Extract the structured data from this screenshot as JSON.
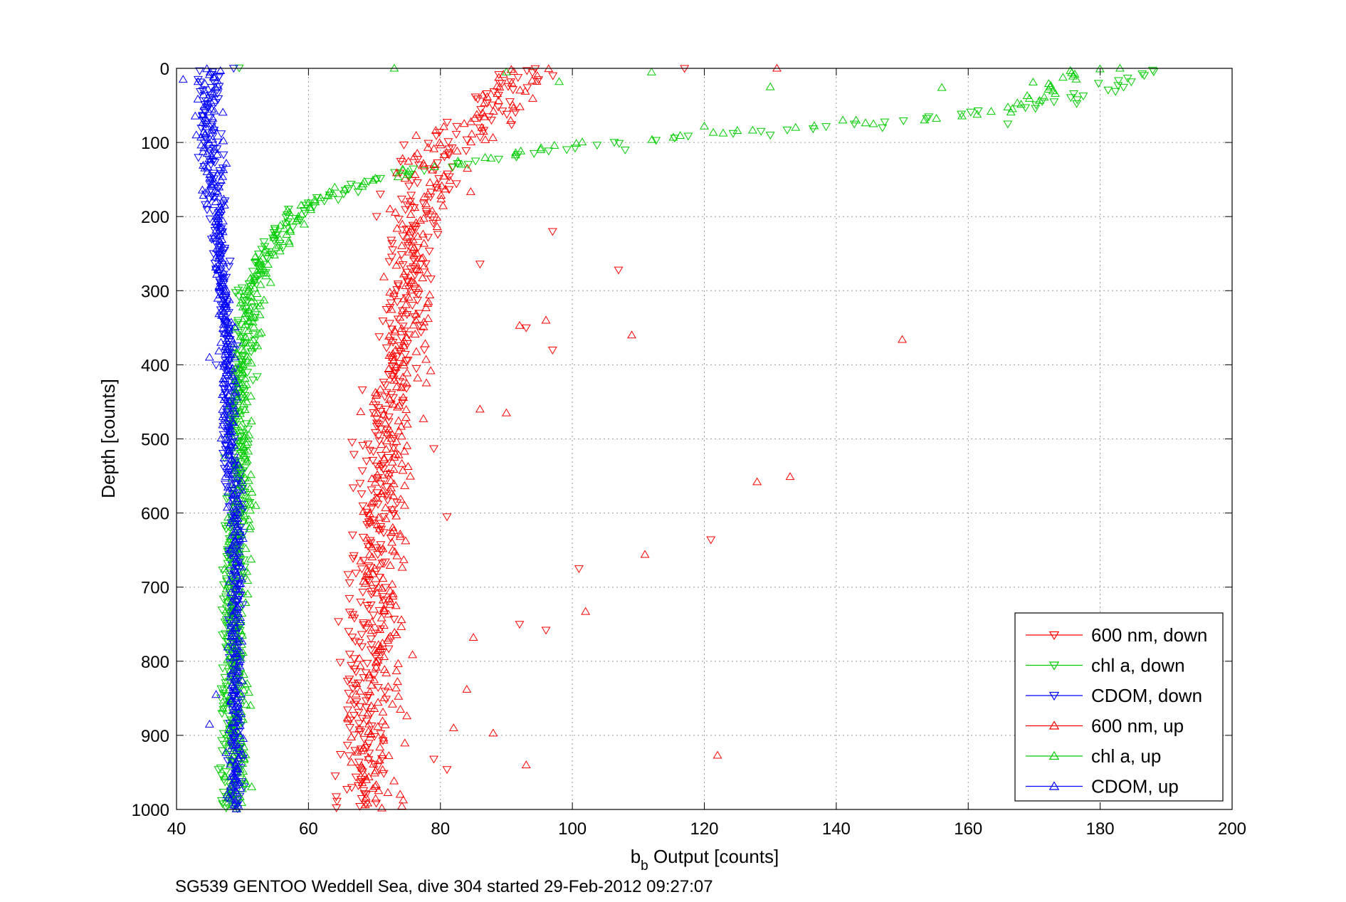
{
  "caption": "SG539 GENTOO Weddell Sea, dive 304 started 29-Feb-2012 09:27:07",
  "chart_data": {
    "type": "scatter",
    "title": "",
    "xlabel_main": "b",
    "xlabel_sub": "b",
    "xlabel_rest": " Output [counts]",
    "ylabel": "Depth [counts]",
    "xlim": [
      40,
      200
    ],
    "ylim": [
      0,
      1000
    ],
    "y_reversed": true,
    "grid": true,
    "legend_position": "bottom-right",
    "x_ticks": [
      "40",
      "60",
      "80",
      "100",
      "120",
      "140",
      "160",
      "180",
      "200"
    ],
    "y_ticks": [
      "0",
      "100",
      "200",
      "300",
      "400",
      "500",
      "600",
      "700",
      "800",
      "900",
      "1000"
    ],
    "colors": {
      "red": "#ff0000",
      "green": "#00cc00",
      "blue": "#0000ff"
    },
    "series": [
      {
        "name": "600 nm, down",
        "color": "#ff0000",
        "marker": "triangle-down",
        "profile": [
          [
            0,
            92
          ],
          [
            20,
            91
          ],
          [
            40,
            89
          ],
          [
            60,
            87
          ],
          [
            80,
            84
          ],
          [
            100,
            81
          ],
          [
            120,
            79
          ],
          [
            150,
            77
          ],
          [
            200,
            76
          ],
          [
            250,
            76
          ],
          [
            300,
            75
          ],
          [
            350,
            74
          ],
          [
            400,
            73
          ],
          [
            450,
            72
          ],
          [
            500,
            71
          ],
          [
            600,
            70
          ],
          [
            700,
            69
          ],
          [
            800,
            69
          ],
          [
            900,
            68
          ],
          [
            1000,
            68
          ]
        ],
        "spread": 3.0,
        "outliers": [
          [
            117,
            0
          ],
          [
            89,
            20
          ],
          [
            107,
            272
          ],
          [
            97,
            380
          ],
          [
            93,
            350
          ],
          [
            101,
            675
          ],
          [
            121,
            636
          ],
          [
            92,
            750
          ],
          [
            96,
            758
          ],
          [
            81,
            946
          ],
          [
            79,
            932
          ],
          [
            97,
            220
          ],
          [
            86,
            264
          ],
          [
            79,
            513
          ],
          [
            81,
            605
          ]
        ]
      },
      {
        "name": "chl a, down",
        "color": "#00cc00",
        "marker": "triangle-down",
        "profile": [
          [
            0,
            189
          ],
          [
            30,
            180
          ],
          [
            50,
            172
          ],
          [
            60,
            160
          ],
          [
            80,
            140
          ],
          [
            90,
            118
          ],
          [
            100,
            108
          ],
          [
            110,
            98
          ],
          [
            120,
            90
          ],
          [
            140,
            76
          ],
          [
            160,
            67
          ],
          [
            180,
            60
          ],
          [
            200,
            57
          ],
          [
            230,
            55
          ],
          [
            260,
            53
          ],
          [
            300,
            51
          ],
          [
            350,
            50
          ],
          [
            400,
            50
          ],
          [
            500,
            49
          ],
          [
            600,
            49
          ],
          [
            700,
            48
          ],
          [
            800,
            48
          ],
          [
            900,
            48
          ],
          [
            1000,
            48
          ]
        ],
        "spread": 1.6,
        "outliers": [
          [
            173,
            45
          ],
          [
            166,
            75
          ],
          [
            147,
            80
          ],
          [
            130,
            90
          ],
          [
            108,
            110
          ]
        ]
      },
      {
        "name": "CDOM, down",
        "color": "#0000ff",
        "marker": "triangle-down",
        "profile": [
          [
            0,
            45
          ],
          [
            100,
            45
          ],
          [
            200,
            46
          ],
          [
            300,
            47
          ],
          [
            400,
            48
          ],
          [
            500,
            48
          ],
          [
            600,
            49
          ],
          [
            700,
            49
          ],
          [
            800,
            49
          ],
          [
            900,
            49
          ],
          [
            1000,
            49
          ]
        ],
        "spread": 1.0,
        "outliers": [
          [
            44,
            30
          ],
          [
            46,
            400
          ]
        ]
      },
      {
        "name": "600 nm, up",
        "color": "#ff0000",
        "marker": "triangle-up",
        "profile": [
          [
            0,
            93
          ],
          [
            20,
            91
          ],
          [
            40,
            90
          ],
          [
            60,
            87
          ],
          [
            80,
            84
          ],
          [
            100,
            81
          ],
          [
            120,
            79
          ],
          [
            150,
            78
          ],
          [
            200,
            77
          ],
          [
            250,
            76
          ],
          [
            300,
            76
          ],
          [
            350,
            75
          ],
          [
            400,
            74
          ],
          [
            450,
            73
          ],
          [
            500,
            73
          ],
          [
            600,
            72
          ],
          [
            700,
            71
          ],
          [
            800,
            71
          ],
          [
            900,
            70
          ],
          [
            1000,
            70
          ]
        ],
        "spread": 3.4,
        "outliers": [
          [
            131,
            0
          ],
          [
            150,
            366
          ],
          [
            133,
            551
          ],
          [
            128,
            558
          ],
          [
            111,
            656
          ],
          [
            122,
            927
          ],
          [
            88,
            897
          ],
          [
            93,
            940
          ],
          [
            84,
            838
          ],
          [
            86,
            460
          ],
          [
            90,
            465
          ],
          [
            82,
            890
          ],
          [
            102,
            733
          ],
          [
            85,
            768
          ],
          [
            109,
            360
          ],
          [
            96,
            340
          ],
          [
            92,
            347
          ]
        ]
      },
      {
        "name": "chl a, up",
        "color": "#00cc00",
        "marker": "triangle-up",
        "profile": [
          [
            0,
            178
          ],
          [
            20,
            172
          ],
          [
            40,
            170
          ],
          [
            60,
            165
          ],
          [
            75,
            145
          ],
          [
            85,
            125
          ],
          [
            95,
            113
          ],
          [
            100,
            102
          ],
          [
            110,
            93
          ],
          [
            120,
            88
          ],
          [
            140,
            74
          ],
          [
            160,
            66
          ],
          [
            180,
            60
          ],
          [
            200,
            58
          ],
          [
            230,
            56
          ],
          [
            260,
            54
          ],
          [
            300,
            52
          ],
          [
            350,
            51
          ],
          [
            400,
            50
          ],
          [
            500,
            50
          ],
          [
            600,
            50
          ],
          [
            700,
            49
          ],
          [
            800,
            49
          ],
          [
            900,
            49
          ],
          [
            1000,
            49
          ]
        ],
        "spread": 1.6,
        "outliers": [
          [
            73,
            0
          ],
          [
            90,
            5
          ],
          [
            98,
            18
          ],
          [
            112,
            5
          ],
          [
            130,
            25
          ],
          [
            156,
            26
          ],
          [
            183,
            0
          ],
          [
            141,
            70
          ],
          [
            143,
            70
          ],
          [
            120,
            78
          ],
          [
            125,
            84
          ],
          [
            52,
            590
          ]
        ]
      },
      {
        "name": "CDOM, up",
        "color": "#0000ff",
        "marker": "triangle-up",
        "profile": [
          [
            0,
            45
          ],
          [
            100,
            45
          ],
          [
            200,
            46
          ],
          [
            300,
            47
          ],
          [
            400,
            48
          ],
          [
            500,
            48
          ],
          [
            600,
            49
          ],
          [
            700,
            49
          ],
          [
            800,
            49
          ],
          [
            900,
            49
          ],
          [
            1000,
            49
          ]
        ],
        "spread": 1.0,
        "outliers": [
          [
            41,
            15
          ],
          [
            43,
            90
          ],
          [
            45,
            390
          ],
          [
            46,
            845
          ],
          [
            45,
            885
          ]
        ]
      }
    ]
  }
}
